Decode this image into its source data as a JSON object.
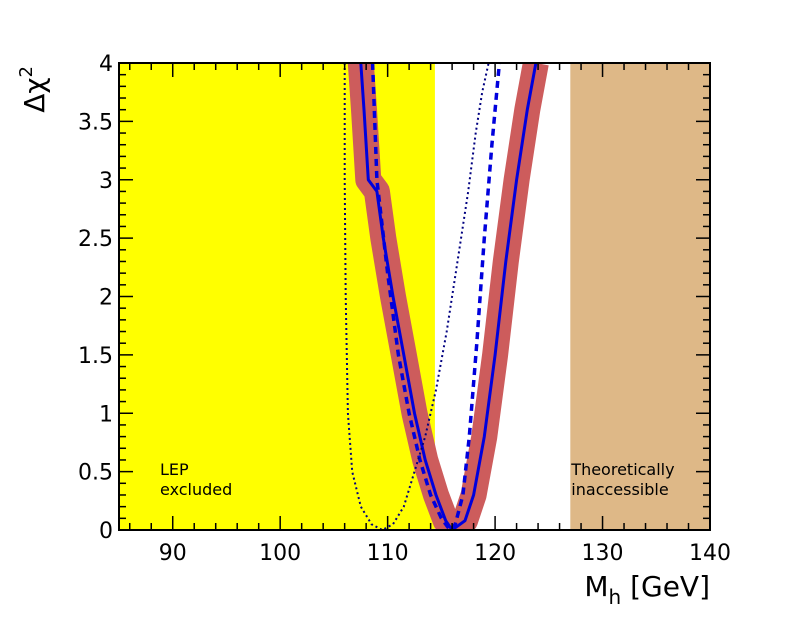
{
  "chart_data": {
    "type": "line",
    "title": "",
    "xlabel_main": "M",
    "xlabel_sub": "h",
    "xlabel_unit": " [GeV]",
    "ylabel_main": "Δχ",
    "ylabel_sup": "2",
    "xlim": [
      85,
      140
    ],
    "ylim": [
      0,
      4
    ],
    "xticks": [
      90,
      100,
      110,
      120,
      130,
      140
    ],
    "yticks": [
      0,
      0.5,
      1,
      1.5,
      2,
      2.5,
      3,
      3.5,
      4
    ],
    "ytick_labels": [
      "0",
      "0.5",
      "1",
      "1.5",
      "2",
      "2.5",
      "3",
      "3.5",
      "4"
    ],
    "regions": [
      {
        "name": "LEP excluded",
        "label_lines": [
          "LEP",
          "excluded"
        ],
        "x_from": 85,
        "x_to": 114.4,
        "color": "#ffff00"
      },
      {
        "name": "Theoretically inaccessible",
        "label_lines": [
          "Theoretically",
          "inaccessible"
        ],
        "x_from": 127,
        "x_to": 140,
        "color": "#deb887"
      }
    ],
    "series": [
      {
        "name": "theory-uncertainty-band",
        "style": "band",
        "color": "#cd5c5c",
        "x": [
          107.5,
          107.8,
          108.2,
          109.0,
          109.6,
          110.5,
          111.5,
          112.5,
          113.5,
          114.5,
          115.4,
          116.0,
          117.2,
          118.0,
          119.0,
          120.0,
          121.0,
          122.0,
          123.0,
          123.8
        ],
        "y": [
          4.0,
          3.6,
          3.0,
          2.9,
          2.5,
          2.0,
          1.5,
          1.0,
          0.6,
          0.3,
          0.08,
          0.0,
          0.08,
          0.3,
          0.8,
          1.5,
          2.3,
          3.0,
          3.6,
          4.0
        ]
      },
      {
        "name": "fit-solid",
        "style": "solid",
        "color": "#0000dd",
        "x": [
          107.5,
          107.8,
          108.2,
          109.0,
          109.6,
          110.5,
          111.5,
          112.5,
          113.5,
          114.5,
          115.4,
          116.0,
          117.2,
          118.0,
          119.0,
          120.0,
          121.0,
          122.0,
          123.0,
          123.8
        ],
        "y": [
          4.0,
          3.6,
          3.0,
          2.9,
          2.5,
          2.0,
          1.5,
          1.0,
          0.6,
          0.3,
          0.08,
          0.0,
          0.08,
          0.3,
          0.8,
          1.5,
          2.3,
          3.0,
          3.6,
          4.0
        ]
      },
      {
        "name": "fit-dashed",
        "style": "dashed",
        "color": "#0000dd",
        "x": [
          108.6,
          109.0,
          110.0,
          111.0,
          112.0,
          113.0,
          114.0,
          115.0,
          115.8,
          116.3,
          117.0,
          117.6,
          118.3,
          119.0,
          119.7,
          120.4
        ],
        "y": [
          4.0,
          3.0,
          2.2,
          1.5,
          1.0,
          0.6,
          0.3,
          0.1,
          0.0,
          0.05,
          0.3,
          0.8,
          1.6,
          2.5,
          3.3,
          4.0
        ]
      },
      {
        "name": "fit-dotted",
        "style": "dotted",
        "color": "#000080",
        "x": [
          106.0,
          106.0,
          106.1,
          106.3,
          106.7,
          107.5,
          108.5,
          109.5,
          110.5,
          111.5,
          112.5,
          113.5,
          114.5,
          115.5,
          116.5,
          117.5,
          118.2,
          118.8,
          119.4
        ],
        "y": [
          4.0,
          3.0,
          2.0,
          1.0,
          0.5,
          0.2,
          0.05,
          0.0,
          0.05,
          0.2,
          0.5,
          0.8,
          1.2,
          1.7,
          2.3,
          2.9,
          3.4,
          3.75,
          4.0
        ]
      }
    ]
  }
}
